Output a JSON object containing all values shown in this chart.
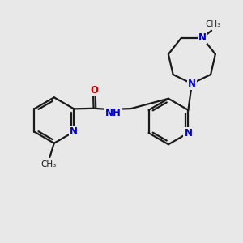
{
  "bg": "#e8e8e8",
  "bc": "#1a1a1a",
  "nc": "#0000cc",
  "oc": "#cc0000",
  "lw": 1.6,
  "lw_thin": 1.3,
  "fs": 8.5,
  "fs_me": 7.5,
  "xlim": [
    0,
    10
  ],
  "ylim": [
    0,
    10
  ]
}
